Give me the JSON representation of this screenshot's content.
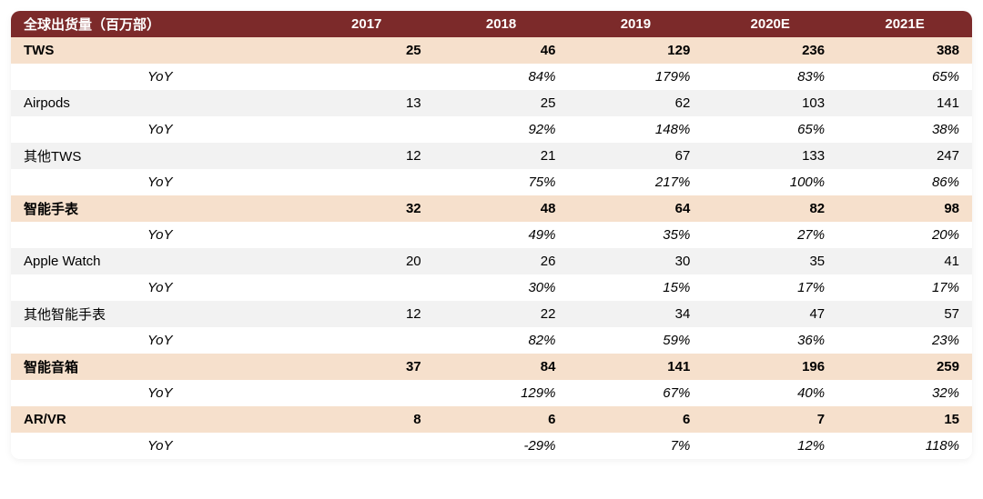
{
  "table": {
    "header_bg": "#7c2a2a",
    "header_fg": "#ffffff",
    "accent_bg": "#f6e0cc",
    "stripe_bg": "#f2f2f2",
    "plain_bg": "#ffffff",
    "text_color": "#000000",
    "font_size_pt": 11,
    "columns": [
      "全球出货量（百万部）",
      "2017",
      "2018",
      "2019",
      "2020E",
      "2021E"
    ],
    "yoy_label": "YoY",
    "rows": [
      {
        "kind": "category",
        "label": "TWS",
        "values": [
          "25",
          "46",
          "129",
          "236",
          "388"
        ]
      },
      {
        "kind": "yoy",
        "values": [
          "",
          "84%",
          "179%",
          "83%",
          "65%"
        ]
      },
      {
        "kind": "sub",
        "label": "Airpods",
        "values": [
          "13",
          "25",
          "62",
          "103",
          "141"
        ]
      },
      {
        "kind": "yoy",
        "values": [
          "",
          "92%",
          "148%",
          "65%",
          "38%"
        ]
      },
      {
        "kind": "sub",
        "label": "其他TWS",
        "values": [
          "12",
          "21",
          "67",
          "133",
          "247"
        ]
      },
      {
        "kind": "yoy",
        "values": [
          "",
          "75%",
          "217%",
          "100%",
          "86%"
        ]
      },
      {
        "kind": "category",
        "label": "智能手表",
        "values": [
          "32",
          "48",
          "64",
          "82",
          "98"
        ]
      },
      {
        "kind": "yoy",
        "values": [
          "",
          "49%",
          "35%",
          "27%",
          "20%"
        ]
      },
      {
        "kind": "sub",
        "label": "Apple Watch",
        "values": [
          "20",
          "26",
          "30",
          "35",
          "41"
        ]
      },
      {
        "kind": "yoy",
        "values": [
          "",
          "30%",
          "15%",
          "17%",
          "17%"
        ]
      },
      {
        "kind": "sub",
        "label": "其他智能手表",
        "values": [
          "12",
          "22",
          "34",
          "47",
          "57"
        ]
      },
      {
        "kind": "yoy",
        "values": [
          "",
          "82%",
          "59%",
          "36%",
          "23%"
        ]
      },
      {
        "kind": "category",
        "label": "智能音箱",
        "values": [
          "37",
          "84",
          "141",
          "196",
          "259"
        ]
      },
      {
        "kind": "yoy",
        "values": [
          "",
          "129%",
          "67%",
          "40%",
          "32%"
        ]
      },
      {
        "kind": "category",
        "label": "AR/VR",
        "values": [
          "8",
          "6",
          "6",
          "7",
          "15"
        ]
      },
      {
        "kind": "yoy",
        "values": [
          "",
          "-29%",
          "7%",
          "12%",
          "118%"
        ]
      }
    ]
  }
}
